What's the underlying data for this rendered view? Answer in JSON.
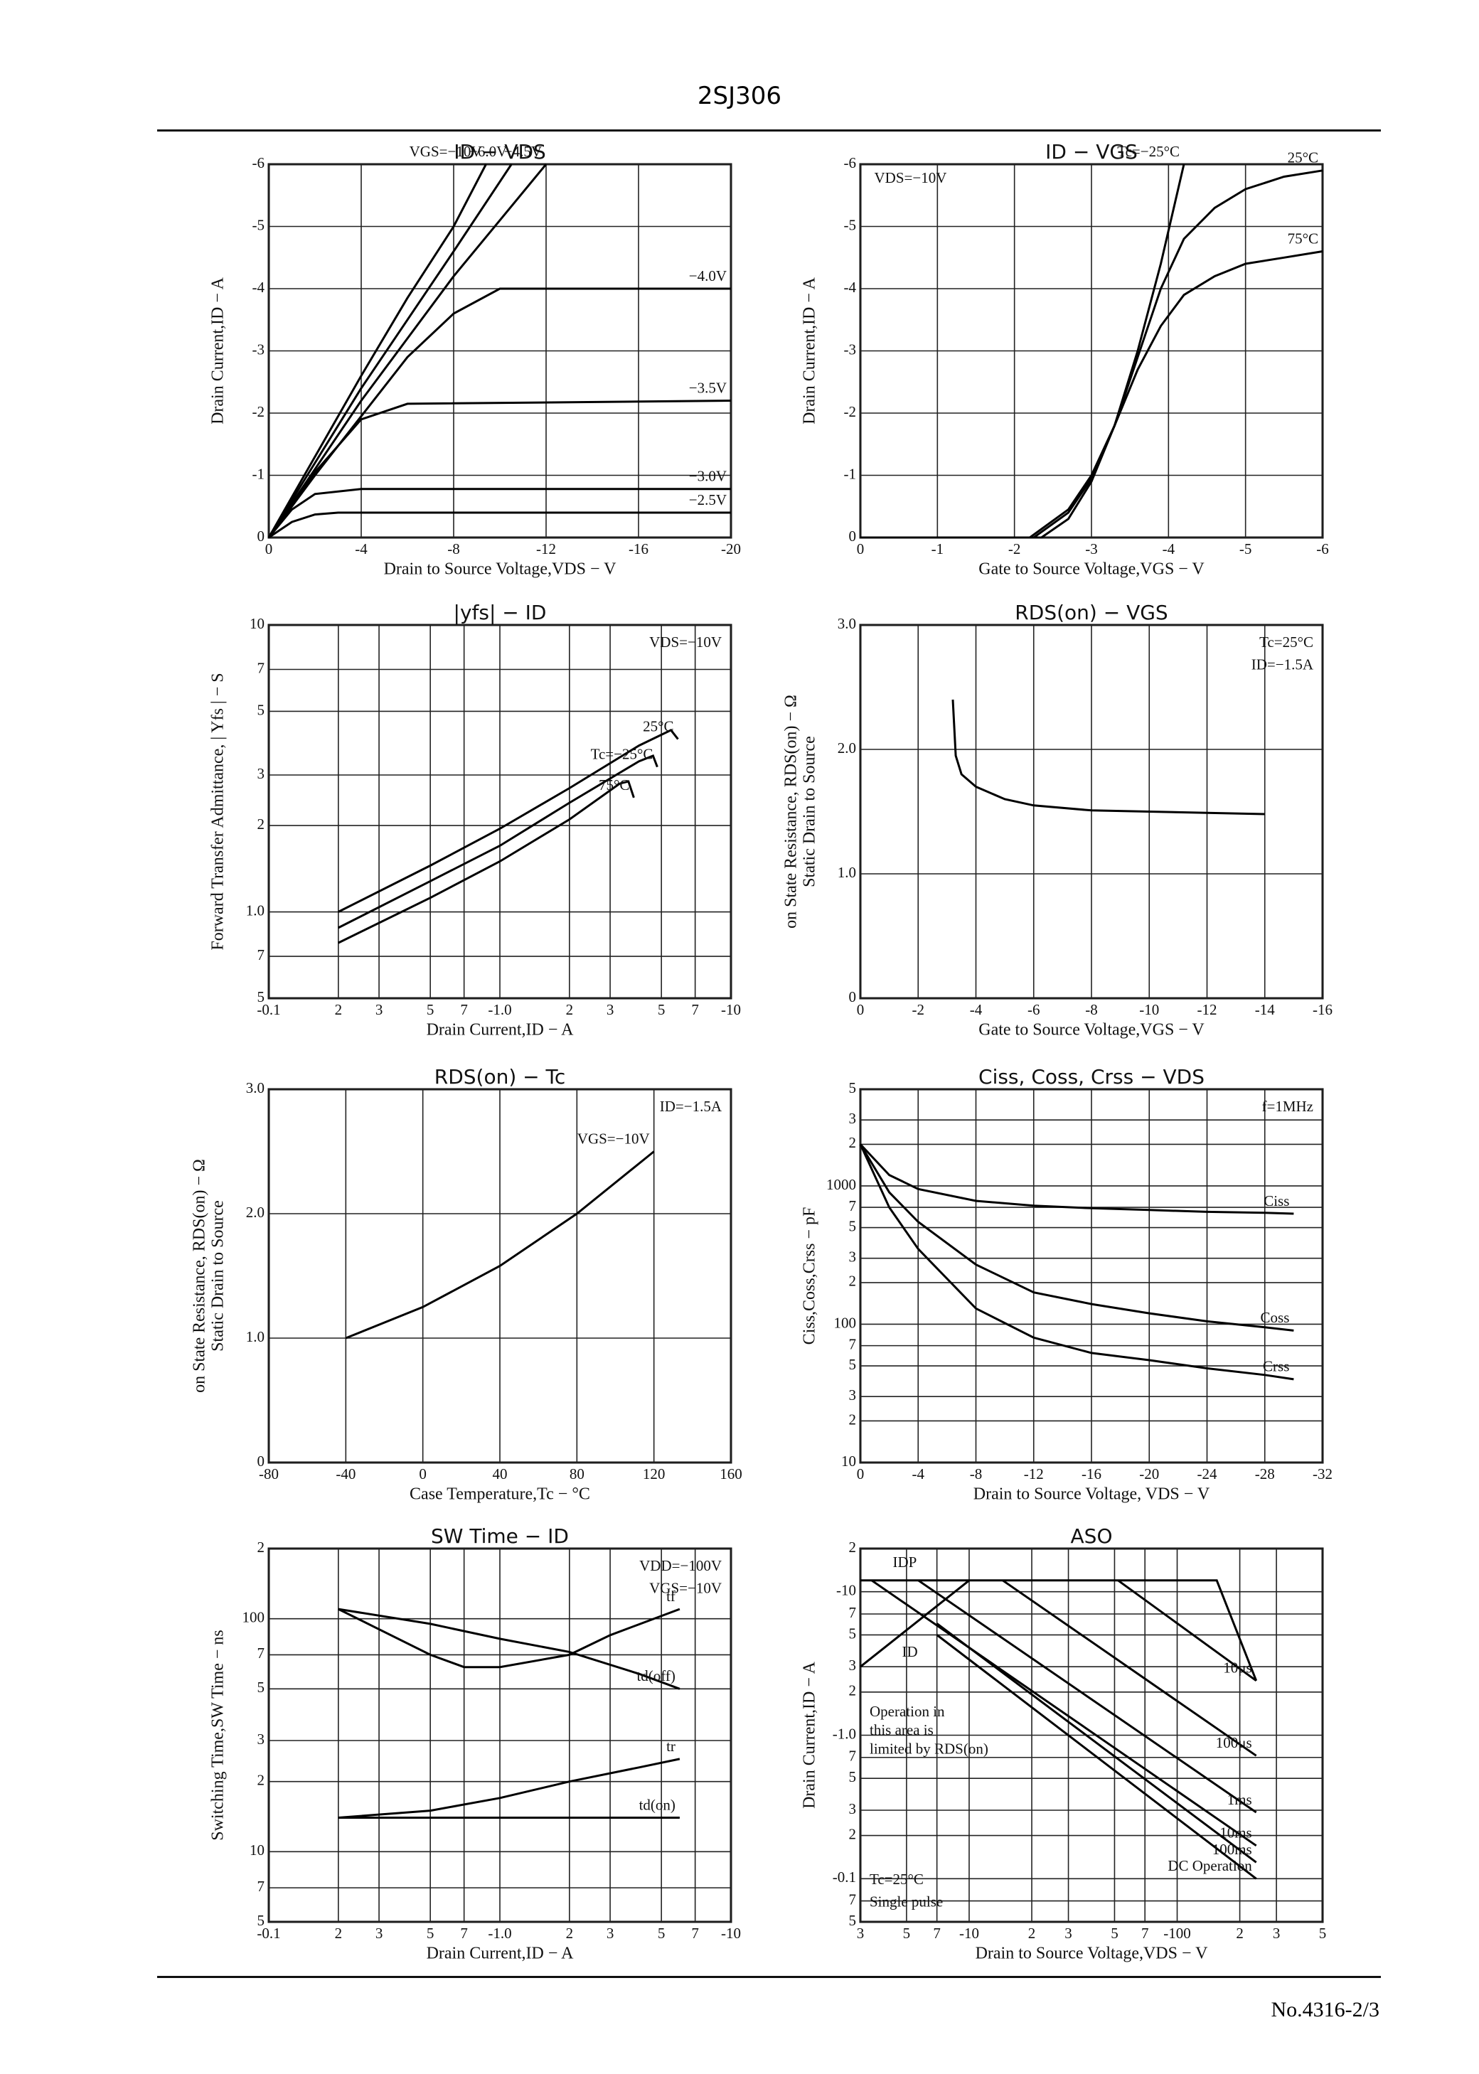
{
  "header": {
    "title": "2SJ306"
  },
  "footer": {
    "page": "No.4316-2/3"
  },
  "chart_data": [
    {
      "type": "line",
      "title": "ID − VDS",
      "xlabel": "Drain to Source Voltage,VDS − V",
      "ylabel": [
        "Drain Current,ID − A"
      ],
      "color": "#000000",
      "grid": true,
      "xlim": [
        0,
        -20
      ],
      "ylim": [
        0,
        -6
      ],
      "xticks": [
        0,
        -4,
        -8,
        -12,
        -16,
        -20
      ],
      "yticks": [
        0,
        -1,
        -2,
        -3,
        -4,
        -5,
        -6
      ],
      "series": [
        {
          "name": "VGS=−10V",
          "x": [
            0,
            -2,
            -4,
            -6,
            -8,
            -9.4
          ],
          "values": [
            0,
            -1.3,
            -2.6,
            -3.85,
            -5,
            -6
          ]
        },
        {
          "name": "−6.0V",
          "x": [
            0,
            -2,
            -4,
            -6,
            -8,
            -10.5
          ],
          "values": [
            0,
            -1.2,
            -2.4,
            -3.5,
            -4.6,
            -6
          ]
        },
        {
          "name": "−4.5V",
          "x": [
            0,
            -2,
            -4,
            -6,
            -8,
            -10,
            -12
          ],
          "values": [
            0,
            -1.1,
            -2.2,
            -3.2,
            -4.2,
            -5.1,
            -6
          ]
        },
        {
          "name": "−4.0V",
          "x": [
            0,
            -2,
            -4,
            -6,
            -8,
            -10,
            -20
          ],
          "values": [
            0,
            -1,
            -1.95,
            -2.9,
            -3.6,
            -4,
            -4
          ]
        },
        {
          "name": "−3.5V",
          "x": [
            0,
            -2,
            -4,
            -6,
            -20
          ],
          "values": [
            0,
            -1.05,
            -1.9,
            -2.15,
            -2.2
          ]
        },
        {
          "name": "−3.0V",
          "x": [
            0,
            -1,
            -2,
            -4,
            -20
          ],
          "values": [
            0,
            -0.45,
            -0.7,
            -0.78,
            -0.78
          ]
        },
        {
          "name": "−2.5V",
          "x": [
            0,
            -1,
            -2,
            -3,
            -20
          ],
          "values": [
            0,
            -0.25,
            -0.37,
            -0.4,
            -0.4
          ]
        }
      ]
    },
    {
      "type": "line",
      "title": "ID − VGS",
      "xlabel": "Gate to Source Voltage,VGS − V",
      "ylabel": [
        "Drain Current,ID − A"
      ],
      "color": "#000000",
      "grid": true,
      "xlim": [
        0,
        -6
      ],
      "ylim": [
        0,
        -6
      ],
      "xticks": [
        0,
        -1,
        -2,
        -3,
        -4,
        -5,
        -6
      ],
      "yticks": [
        0,
        -1,
        -2,
        -3,
        -4,
        -5,
        -6
      ],
      "annotations": [
        "VDS=−10V"
      ],
      "series": [
        {
          "name": "Tc=−25°C",
          "x": [
            0,
            -2.35,
            -2.7,
            -3,
            -3.3,
            -3.6,
            -3.9,
            -4.2
          ],
          "values": [
            0,
            0,
            -0.3,
            -0.9,
            -1.8,
            -3,
            -4.4,
            -6
          ]
        },
        {
          "name": "25°C",
          "x": [
            0,
            -2.25,
            -2.7,
            -3,
            -3.3,
            -3.6,
            -3.9,
            -4.2,
            -4.6,
            -5,
            -5.5,
            -6
          ],
          "values": [
            0,
            0,
            -0.4,
            -0.95,
            -1.8,
            -2.9,
            -4,
            -4.8,
            -5.3,
            -5.6,
            -5.8,
            -5.9
          ]
        },
        {
          "name": "75°C",
          "x": [
            0,
            -2.2,
            -2.7,
            -3,
            -3.3,
            -3.6,
            -3.9,
            -4.2,
            -4.6,
            -5,
            -5.5,
            -6
          ],
          "values": [
            0,
            0,
            -0.45,
            -1,
            -1.8,
            -2.7,
            -3.4,
            -3.9,
            -4.2,
            -4.4,
            -4.5,
            -4.6
          ]
        }
      ]
    },
    {
      "type": "line",
      "title": "|yfs| − ID",
      "xlabel": "Drain Current,ID − A",
      "ylabel": [
        "Forward Transfer Admittance, | Yfs | − S"
      ],
      "color": "#000000",
      "grid": true,
      "xlog": true,
      "ylog": true,
      "xlim": [
        -0.1,
        -10
      ],
      "ylim": [
        0.5,
        10
      ],
      "xticks": [
        -0.1,
        {
          "value": -0.2,
          "label": "2"
        },
        {
          "value": -0.3,
          "label": "3"
        },
        {
          "value": -0.5,
          "label": "5"
        },
        {
          "value": -0.7,
          "label": "7"
        },
        {
          "value": -1,
          "label": "-1.0"
        },
        {
          "value": -2,
          "label": "2"
        },
        {
          "value": -3,
          "label": "3"
        },
        {
          "value": -5,
          "label": "5"
        },
        {
          "value": -7,
          "label": "7"
        },
        -10
      ],
      "yticks": [
        {
          "value": 0.5,
          "label": "5"
        },
        {
          "value": 0.7,
          "label": "7"
        },
        {
          "value": 1,
          "label": "1.0"
        },
        2,
        3,
        5,
        7,
        10
      ],
      "annotations": [
        "VDS=−10V"
      ],
      "series": [
        {
          "name": "25°C",
          "x": [
            -0.2,
            -0.5,
            -1,
            -2,
            -4,
            -5.5,
            -5.9
          ],
          "values": [
            1.0,
            1.45,
            1.95,
            2.7,
            3.8,
            4.3,
            4.0
          ]
        },
        {
          "name": "Tc=−25°C",
          "x": [
            -0.2,
            -0.5,
            -1,
            -2,
            -4,
            -4.6,
            -4.8
          ],
          "values": [
            0.88,
            1.28,
            1.7,
            2.4,
            3.35,
            3.5,
            3.2
          ]
        },
        {
          "name": "75°C",
          "x": [
            -0.2,
            -0.5,
            -1,
            -2,
            -3.3,
            -3.6,
            -3.8
          ],
          "values": [
            0.78,
            1.12,
            1.5,
            2.1,
            2.8,
            2.85,
            2.5
          ]
        }
      ]
    },
    {
      "type": "line",
      "title": "RDS(on) − VGS",
      "xlabel": "Gate to Source Voltage,VGS − V",
      "ylabel": [
        "Static Drain to Source",
        "on State Resistance, RDS(on) − Ω"
      ],
      "color": "#000000",
      "grid": true,
      "xlim": [
        0,
        -16
      ],
      "ylim": [
        0,
        3
      ],
      "xticks": [
        0,
        -2,
        -4,
        -6,
        -8,
        -10,
        -12,
        -14,
        -16
      ],
      "yticks": [
        0,
        {
          "value": 1,
          "label": "1.0"
        },
        {
          "value": 2,
          "label": "2.0"
        },
        {
          "value": 3,
          "label": "3.0"
        }
      ],
      "annotations": [
        "Tc=25°C",
        "ID=−1.5A"
      ],
      "series": [
        {
          "x": [
            -3.2,
            -3.3,
            -3.5,
            -4,
            -5,
            -6,
            -8,
            -10,
            -12,
            -14
          ],
          "values": [
            2.4,
            1.95,
            1.8,
            1.7,
            1.6,
            1.55,
            1.51,
            1.5,
            1.49,
            1.48
          ]
        }
      ]
    },
    {
      "type": "line",
      "title": "RDS(on) − Tc",
      "xlabel": "Case Temperature,Tc − °C",
      "ylabel": [
        "Static Drain to Source",
        "on State Resistance, RDS(on) − Ω"
      ],
      "color": "#000000",
      "grid": true,
      "xlim": [
        -80,
        160
      ],
      "ylim": [
        0,
        3
      ],
      "xticks": [
        -80,
        -40,
        0,
        40,
        80,
        120,
        160
      ],
      "yticks": [
        0,
        {
          "value": 1,
          "label": "1.0"
        },
        {
          "value": 2,
          "label": "2.0"
        },
        {
          "value": 3,
          "label": "3.0"
        }
      ],
      "annotations": [
        "ID=−1.5A"
      ],
      "series": [
        {
          "name": "VGS=−10V",
          "x": [
            -40,
            0,
            40,
            80,
            120
          ],
          "values": [
            1.0,
            1.25,
            1.58,
            2.0,
            2.5
          ]
        }
      ]
    },
    {
      "type": "line",
      "title": "Ciss, Coss, Crss − VDS",
      "xlabel": "Drain to Source Voltage, VDS − V",
      "ylabel": [
        "Ciss,Coss,Crss − pF"
      ],
      "color": "#000000",
      "grid": true,
      "ylog": true,
      "xlim": [
        0,
        -32
      ],
      "ylim": [
        10,
        5000
      ],
      "xticks": [
        0,
        -4,
        -8,
        -12,
        -16,
        -20,
        -24,
        -28,
        -32
      ],
      "yticks": [
        10,
        {
          "value": 20,
          "label": "2"
        },
        {
          "value": 30,
          "label": "3"
        },
        {
          "value": 50,
          "label": "5"
        },
        {
          "value": 70,
          "label": "7"
        },
        100,
        {
          "value": 200,
          "label": "2"
        },
        {
          "value": 300,
          "label": "3"
        },
        {
          "value": 500,
          "label": "5"
        },
        {
          "value": 700,
          "label": "7"
        },
        1000,
        {
          "value": 2000,
          "label": "2"
        },
        {
          "value": 3000,
          "label": "3"
        },
        {
          "value": 5000,
          "label": "5"
        }
      ],
      "annotations": [
        "f=1MHz"
      ],
      "series": [
        {
          "name": "Ciss",
          "x": [
            0,
            -2,
            -4,
            -8,
            -12,
            -16,
            -20,
            -24,
            -28,
            -30
          ],
          "values": [
            2000,
            1200,
            950,
            780,
            720,
            690,
            670,
            650,
            640,
            630
          ]
        },
        {
          "name": "Coss",
          "x": [
            0,
            -2,
            -4,
            -8,
            -12,
            -16,
            -20,
            -24,
            -28,
            -30
          ],
          "values": [
            2000,
            900,
            550,
            270,
            170,
            140,
            120,
            105,
            95,
            90
          ]
        },
        {
          "name": "Crss",
          "x": [
            0,
            -2,
            -4,
            -8,
            -12,
            -16,
            -20,
            -24,
            -28,
            -30
          ],
          "values": [
            2000,
            700,
            350,
            130,
            80,
            62,
            55,
            48,
            43,
            40
          ]
        }
      ]
    },
    {
      "type": "line",
      "title": "SW Time − ID",
      "xlabel": "Drain Current,ID − A",
      "ylabel": [
        "Switching Time,SW Time − ns"
      ],
      "color": "#000000",
      "grid": true,
      "xlog": true,
      "ylog": true,
      "xlim": [
        -0.1,
        -10
      ],
      "ylim": [
        5,
        200
      ],
      "xticks": [
        -0.1,
        {
          "value": -0.2,
          "label": "2"
        },
        {
          "value": -0.3,
          "label": "3"
        },
        {
          "value": -0.5,
          "label": "5"
        },
        {
          "value": -0.7,
          "label": "7"
        },
        {
          "value": -1,
          "label": "-1.0"
        },
        {
          "value": -2,
          "label": "2"
        },
        {
          "value": -3,
          "label": "3"
        },
        {
          "value": -5,
          "label": "5"
        },
        {
          "value": -7,
          "label": "7"
        },
        -10
      ],
      "yticks": [
        {
          "value": 5,
          "label": "5"
        },
        {
          "value": 7,
          "label": "7"
        },
        10,
        {
          "value": 20,
          "label": "2"
        },
        {
          "value": 30,
          "label": "3"
        },
        {
          "value": 50,
          "label": "5"
        },
        {
          "value": 70,
          "label": "7"
        },
        100,
        {
          "value": 200,
          "label": "2"
        }
      ],
      "annotations": [
        "VDD=−100V",
        "VGS=−10V"
      ],
      "series": [
        {
          "name": "tf",
          "x": [
            -0.2,
            -0.5,
            -0.7,
            -1,
            -2,
            -3,
            -6
          ],
          "values": [
            110,
            70,
            62,
            62,
            70,
            85,
            110
          ]
        },
        {
          "name": "td(off)",
          "x": [
            -0.2,
            -0.5,
            -1,
            -2,
            -4,
            -6
          ],
          "values": [
            110,
            95,
            82,
            72,
            58,
            50
          ]
        },
        {
          "name": "tr",
          "x": [
            -0.2,
            -0.5,
            -1,
            -2,
            -4,
            -6
          ],
          "values": [
            14,
            15,
            17,
            20,
            23,
            25
          ]
        },
        {
          "name": "td(on)",
          "x": [
            -0.2,
            -6
          ],
          "values": [
            14,
            14
          ]
        }
      ]
    },
    {
      "type": "line",
      "title": "ASO",
      "xlabel": "Drain to Source Voltage,VDS − V",
      "ylabel": [
        "Drain Current,ID − A"
      ],
      "color": "#000000",
      "grid": true,
      "xlog": true,
      "ylog": true,
      "xlim": [
        -3,
        -500
      ],
      "ylim": [
        -0.05,
        -20
      ],
      "xticks": [
        {
          "value": -3,
          "label": "3"
        },
        {
          "value": -5,
          "label": "5"
        },
        {
          "value": -7,
          "label": "7"
        },
        -10,
        {
          "value": -20,
          "label": "2"
        },
        {
          "value": -30,
          "label": "3"
        },
        {
          "value": -50,
          "label": "5"
        },
        {
          "value": -70,
          "label": "7"
        },
        -100,
        {
          "value": -200,
          "label": "2"
        },
        {
          "value": -300,
          "label": "3"
        },
        {
          "value": -500,
          "label": "5"
        }
      ],
      "yticks": [
        {
          "value": -0.05,
          "label": "5"
        },
        {
          "value": -0.07,
          "label": "7"
        },
        -0.1,
        {
          "value": -0.2,
          "label": "2"
        },
        {
          "value": -0.3,
          "label": "3"
        },
        {
          "value": -0.5,
          "label": "5"
        },
        {
          "value": -0.7,
          "label": "7"
        },
        {
          "value": -1,
          "label": "-1.0"
        },
        {
          "value": -2,
          "label": "2"
        },
        {
          "value": -3,
          "label": "3"
        },
        {
          "value": -5,
          "label": "5"
        },
        {
          "value": -7,
          "label": "7"
        },
        -10,
        {
          "value": -20,
          "label": "2"
        }
      ],
      "annotations": [
        "IDP",
        "ID",
        "Operation in",
        "this area is",
        "limited by RDS(on)",
        "Tc=25°C",
        "Single pulse"
      ],
      "series": [
        {
          "x": [
            -3,
            -155,
            -240
          ],
          "values": [
            -12,
            -12,
            -2.4
          ]
        },
        {
          "name": "10μs",
          "x": [
            -52,
            -240
          ],
          "values": [
            -12,
            -2.4
          ]
        },
        {
          "name": "100μs",
          "x": [
            -14.5,
            -240
          ],
          "values": [
            -12,
            -0.72
          ]
        },
        {
          "name": "1ms",
          "x": [
            -5.7,
            -240
          ],
          "values": [
            -12,
            -0.29
          ]
        },
        {
          "name": "10ms",
          "x": [
            -3.4,
            -240
          ],
          "values": [
            -12,
            -0.17
          ]
        },
        {
          "name": "100ms",
          "x": [
            -7,
            -240
          ],
          "values": [
            -6,
            -0.13
          ]
        },
        {
          "name": "DC Operation",
          "x": [
            -7,
            -240
          ],
          "values": [
            -5,
            -0.1
          ]
        },
        {
          "x": [
            -3,
            -10
          ],
          "values": [
            -3,
            -12
          ]
        }
      ]
    }
  ]
}
